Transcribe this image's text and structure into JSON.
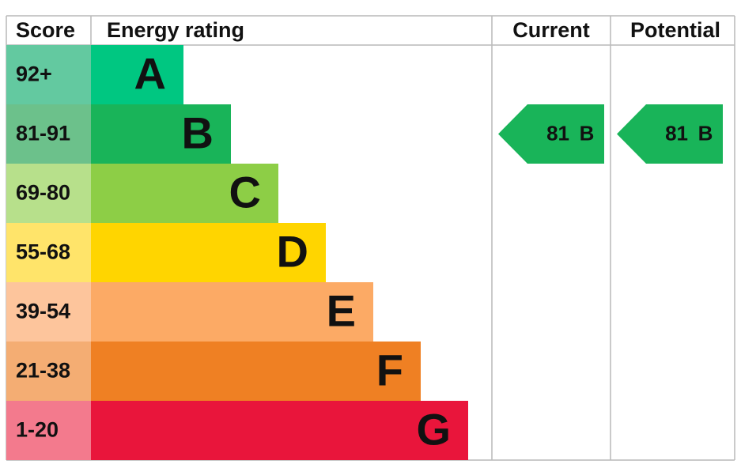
{
  "headers": {
    "score": "Score",
    "rating": "Energy rating",
    "current": "Current",
    "potential": "Potential"
  },
  "rows": [
    {
      "score": "92+",
      "band": "A",
      "score_color": "#63c9a0",
      "color": "#00c781"
    },
    {
      "score": "81-91",
      "band": "B",
      "score_color": "#6cc18b",
      "color": "#19b459"
    },
    {
      "score": "69-80",
      "band": "C",
      "score_color": "#b7e08b",
      "color": "#8dce46"
    },
    {
      "score": "55-68",
      "band": "D",
      "score_color": "#ffe46a",
      "color": "#ffd500"
    },
    {
      "score": "39-54",
      "band": "E",
      "score_color": "#fdc59c",
      "color": "#fcaa65"
    },
    {
      "score": "21-38",
      "band": "F",
      "score_color": "#f4ad73",
      "color": "#ef8023"
    },
    {
      "score": "1-20",
      "band": "G",
      "score_color": "#f37a8d",
      "color": "#e9153b"
    }
  ],
  "current": {
    "score": 81,
    "band": "B"
  },
  "potential": {
    "score": 81,
    "band": "B"
  }
}
